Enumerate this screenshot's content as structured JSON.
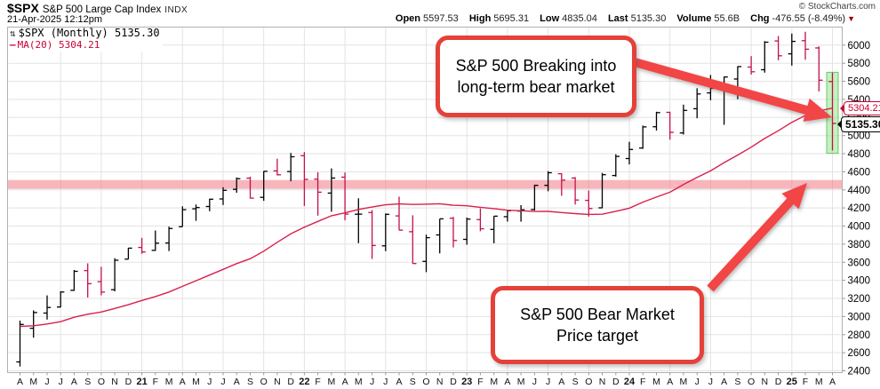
{
  "header": {
    "symbol": "$SPX",
    "symbol_name": "S&P 500 Large Cap Index",
    "exchange": "INDX",
    "datetime": "21-Apr-2025 12:12pm",
    "copyright": "© StockCharts.com",
    "quote": {
      "open_label": "Open",
      "open": "5597.53",
      "high_label": "High",
      "high": "5695.31",
      "low_label": "Low",
      "low": "4835.04",
      "last_label": "Last",
      "last": "5135.30",
      "volume_label": "Volume",
      "volume": "55.6B",
      "chg_label": "Chg",
      "chg": "-476.55 (-8.49%)",
      "chg_direction": "down"
    }
  },
  "legend": {
    "series_label": "$SPX (Monthly) 5135.30",
    "ma_label": "MA(20) 5304.21"
  },
  "annotations": {
    "top": {
      "line1": "S&P 500 Breaking into",
      "line2": "long-term bear market"
    },
    "bottom": {
      "line1": "S&P 500 Bear Market",
      "line2": "Price target"
    }
  },
  "price_labels": {
    "ma": "5304.21",
    "last": "5135.30"
  },
  "colors": {
    "up_bar": "#000000",
    "down_bar": "#c4104a",
    "ma_line": "#d8204c",
    "support_band": "rgba(240,110,120,0.5)",
    "highlight_fill": "rgba(144,232,134,0.55)",
    "highlight_stroke": "rgba(90,180,80,0.8)",
    "arrow": "#f24444",
    "callout_border": "#e5403a",
    "grid": "#e3e3e3",
    "frame": "#b0b0b0",
    "tick": "#999999",
    "axis_text": "#000000"
  },
  "chart_data": {
    "type": "ohlc",
    "title": "$SPX S&P 500 Large Cap Index (Monthly)",
    "period": "Apr-2020 to Apr-2025, monthly bars",
    "legend_position": "top-left",
    "grid": true,
    "ylim": [
      2385,
      6205
    ],
    "y_ticks": [
      2400,
      2600,
      2800,
      3000,
      3200,
      3400,
      3600,
      3800,
      4000,
      4200,
      4400,
      4600,
      4800,
      5000,
      5200,
      5400,
      5600,
      5800,
      6000
    ],
    "x_labels": [
      "A",
      "M",
      "J",
      "J",
      "A",
      "S",
      "O",
      "N",
      "D",
      "21",
      "F",
      "M",
      "A",
      "M",
      "J",
      "J",
      "A",
      "S",
      "O",
      "N",
      "D",
      "22",
      "F",
      "M",
      "A",
      "M",
      "J",
      "J",
      "A",
      "S",
      "O",
      "N",
      "D",
      "23",
      "F",
      "M",
      "A",
      "M",
      "J",
      "J",
      "A",
      "S",
      "O",
      "N",
      "D",
      "24",
      "F",
      "M",
      "A",
      "M",
      "J",
      "J",
      "A",
      "S",
      "O",
      "N",
      "D",
      "25",
      "F",
      "M",
      "A"
    ],
    "ohlc": [
      [
        2498,
        2955,
        2448,
        2912
      ],
      [
        2870,
        3068,
        2766,
        3044
      ],
      [
        3038,
        3233,
        2966,
        3100
      ],
      [
        3105,
        3280,
        3101,
        3271
      ],
      [
        3289,
        3514,
        3284,
        3500
      ],
      [
        3507,
        3588,
        3209,
        3363
      ],
      [
        3385,
        3550,
        3234,
        3270
      ],
      [
        3296,
        3645,
        3279,
        3622
      ],
      [
        3634,
        3760,
        3633,
        3756
      ],
      [
        3764,
        3870,
        3694,
        3714
      ],
      [
        3731,
        3950,
        3725,
        3811
      ],
      [
        3813,
        3994,
        3723,
        3973
      ],
      [
        3992,
        4218,
        3992,
        4181
      ],
      [
        4191,
        4238,
        4057,
        4204
      ],
      [
        4216,
        4302,
        4164,
        4297
      ],
      [
        4300,
        4429,
        4233,
        4395
      ],
      [
        4406,
        4537,
        4368,
        4523
      ],
      [
        4529,
        4546,
        4306,
        4308
      ],
      [
        4317,
        4608,
        4279,
        4605
      ],
      [
        4610,
        4744,
        4560,
        4567
      ],
      [
        4602,
        4808,
        4495,
        4766
      ],
      [
        4778,
        4818,
        4222,
        4516
      ],
      [
        4519,
        4595,
        4115,
        4374
      ],
      [
        4364,
        4637,
        4158,
        4530
      ],
      [
        4540,
        4593,
        4063,
        4132
      ],
      [
        4131,
        4307,
        3811,
        4132
      ],
      [
        4149,
        4177,
        3637,
        3785
      ],
      [
        3781,
        4140,
        3722,
        4130
      ],
      [
        4112,
        4325,
        3954,
        3955
      ],
      [
        3937,
        4119,
        3584,
        3586
      ],
      [
        3609,
        3905,
        3491,
        3872
      ],
      [
        3902,
        4080,
        3698,
        4080
      ],
      [
        4087,
        4101,
        3764,
        3840
      ],
      [
        3853,
        4094,
        3794,
        4077
      ],
      [
        4071,
        4195,
        3943,
        3970
      ],
      [
        3963,
        4110,
        3809,
        4109
      ],
      [
        4103,
        4170,
        4049,
        4169
      ],
      [
        4166,
        4231,
        4048,
        4180
      ],
      [
        4183,
        4458,
        4172,
        4450
      ],
      [
        4450,
        4607,
        4385,
        4589
      ],
      [
        4578,
        4584,
        4335,
        4508
      ],
      [
        4530,
        4541,
        4238,
        4288
      ],
      [
        4284,
        4393,
        4104,
        4194
      ],
      [
        4201,
        4587,
        4197,
        4568
      ],
      [
        4559,
        4793,
        4546,
        4770
      ],
      [
        4746,
        4931,
        4682,
        4846
      ],
      [
        4862,
        5111,
        4853,
        5096
      ],
      [
        5098,
        5264,
        5056,
        5254
      ],
      [
        5257,
        5264,
        4954,
        5036
      ],
      [
        5029,
        5342,
        5011,
        5278
      ],
      [
        5297,
        5524,
        5191,
        5460
      ],
      [
        5472,
        5670,
        5390,
        5522
      ],
      [
        5506,
        5652,
        5119,
        5648
      ],
      [
        5625,
        5767,
        5402,
        5762
      ],
      [
        5758,
        5878,
        5674,
        5705
      ],
      [
        5728,
        6044,
        5696,
        6032
      ],
      [
        6046,
        6100,
        5833,
        5882
      ],
      [
        5904,
        6128,
        5773,
        6041
      ],
      [
        6049,
        6147,
        5838,
        5955
      ],
      [
        5969,
        5986,
        5488,
        5612
      ],
      [
        5597.53,
        5695.31,
        4835.04,
        5135.3
      ]
    ],
    "ma20": [
      2891,
      2898,
      2917,
      2943,
      2992,
      3025,
      3050,
      3089,
      3130,
      3178,
      3221,
      3271,
      3334,
      3395,
      3458,
      3521,
      3585,
      3639,
      3722,
      3821,
      3914,
      3987,
      4051,
      4114,
      4146,
      4184,
      4210,
      4235,
      4245,
      4239,
      4242,
      4247,
      4230,
      4224,
      4207,
      4193,
      4175,
      4169,
      4161,
      4162,
      4149,
      4138,
      4129,
      4131,
      4163,
      4198,
      4264,
      4320,
      4374,
      4459,
      4538,
      4610,
      4701,
      4785,
      4872,
      4968,
      5054,
      5147,
      5222,
      5273,
      5304
    ],
    "ma_last": 5304.21,
    "last_close": 5135.3,
    "support_band": {
      "level": 4460
    },
    "highlight_band": {
      "index": 60,
      "low": 4805,
      "high": 5700
    }
  }
}
